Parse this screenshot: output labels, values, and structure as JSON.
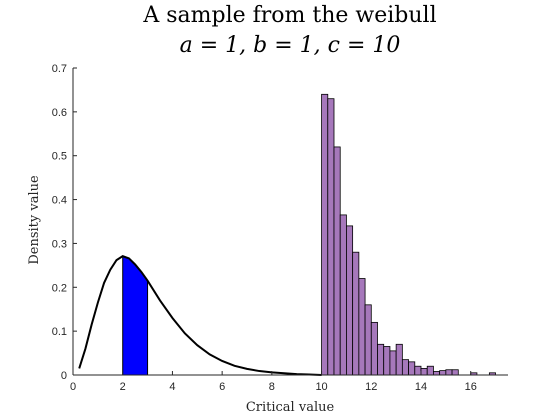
{
  "chart_data": {
    "type": "bar",
    "title": "A sample from the weibull",
    "subtitle": "a = 1, b = 1, c = 10",
    "xlabel": "Critical value",
    "ylabel": "Density value",
    "xlim": [
      0,
      17.5
    ],
    "ylim": [
      0,
      0.7
    ],
    "xticks": [
      "0",
      "2",
      "4",
      "6",
      "8",
      "10",
      "12",
      "14",
      "16"
    ],
    "yticks": [
      "0",
      "0.1",
      "0.2",
      "0.3",
      "0.4",
      "0.5",
      "0.6",
      "0.7"
    ],
    "grid": false,
    "histogram": {
      "color": "#a678bb",
      "bin_width": 0.25,
      "bins": [
        {
          "x0": 10.0,
          "density": 0.64
        },
        {
          "x0": 10.25,
          "density": 0.63
        },
        {
          "x0": 10.5,
          "density": 0.52
        },
        {
          "x0": 10.75,
          "density": 0.365
        },
        {
          "x0": 11.0,
          "density": 0.34
        },
        {
          "x0": 11.25,
          "density": 0.28
        },
        {
          "x0": 11.5,
          "density": 0.22
        },
        {
          "x0": 11.75,
          "density": 0.16
        },
        {
          "x0": 12.0,
          "density": 0.12
        },
        {
          "x0": 12.25,
          "density": 0.07
        },
        {
          "x0": 12.5,
          "density": 0.065
        },
        {
          "x0": 12.75,
          "density": 0.055
        },
        {
          "x0": 13.0,
          "density": 0.07
        },
        {
          "x0": 13.25,
          "density": 0.035
        },
        {
          "x0": 13.5,
          "density": 0.03
        },
        {
          "x0": 13.75,
          "density": 0.02
        },
        {
          "x0": 14.0,
          "density": 0.015
        },
        {
          "x0": 14.25,
          "density": 0.02
        },
        {
          "x0": 14.5,
          "density": 0.008
        },
        {
          "x0": 14.75,
          "density": 0.01
        },
        {
          "x0": 15.0,
          "density": 0.012
        },
        {
          "x0": 15.25,
          "density": 0.012
        },
        {
          "x0": 15.5,
          "density": 0.0
        },
        {
          "x0": 15.75,
          "density": 0.0
        },
        {
          "x0": 16.0,
          "density": 0.005
        },
        {
          "x0": 16.25,
          "density": 0.0
        },
        {
          "x0": 16.5,
          "density": 0.0
        },
        {
          "x0": 16.75,
          "density": 0.005
        }
      ]
    },
    "density_curve": {
      "color": "#000000",
      "x": [
        0.25,
        0.5,
        0.75,
        1.0,
        1.25,
        1.5,
        1.75,
        2.0,
        2.25,
        2.5,
        2.75,
        3.0,
        3.5,
        4.0,
        4.5,
        5.0,
        5.5,
        6.0,
        6.5,
        7.0,
        7.5,
        8.0,
        8.5,
        9.0,
        9.5,
        10.0
      ],
      "y": [
        0.015,
        0.06,
        0.115,
        0.165,
        0.21,
        0.24,
        0.262,
        0.271,
        0.266,
        0.252,
        0.235,
        0.215,
        0.17,
        0.13,
        0.095,
        0.068,
        0.047,
        0.032,
        0.021,
        0.014,
        0.009,
        0.006,
        0.004,
        0.002,
        0.001,
        0.0
      ]
    },
    "shaded_region": {
      "color": "#0000ff",
      "x": [
        2.0,
        2.25,
        2.5,
        2.75,
        3.0
      ],
      "y": [
        0.271,
        0.266,
        0.252,
        0.235,
        0.215
      ]
    }
  }
}
